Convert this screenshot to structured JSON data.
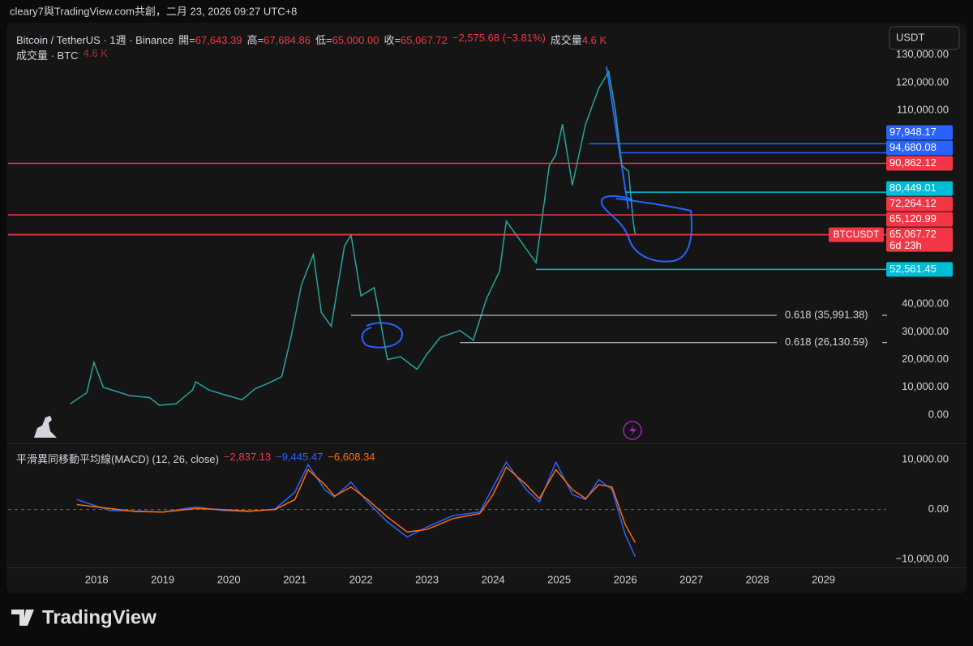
{
  "header_text": "cleary7與TradingView.com共創，二月 23, 2026 09:27 UTC+8",
  "legend": {
    "symbol": "Bitcoin / TetherUS · 1週 · Binance",
    "ohlc": [
      {
        "label": "開=",
        "value": "67,643.39"
      },
      {
        "label": "高=",
        "value": "67,684.86"
      },
      {
        "label": "低=",
        "value": "65,000.00"
      },
      {
        "label": "收=",
        "value": "65,067.72"
      }
    ],
    "change": "−2,575.68 (−3.81%)",
    "volume_label": "成交量",
    "volume": "4.6 K",
    "volume_pane": "成交量 · BTC",
    "volume_pane_value": "4.6 K"
  },
  "footer": {
    "logo": "TradingView"
  },
  "chart_data": [
    {
      "type": "line",
      "currency": "USDT",
      "countdown": "6d 23h",
      "x": [
        2017.6,
        2017.85,
        2017.96,
        2018.1,
        2018.3,
        2018.5,
        2018.8,
        2018.95,
        2019.2,
        2019.45,
        2019.5,
        2019.7,
        2019.95,
        2020.2,
        2020.4,
        2020.6,
        2020.8,
        2020.95,
        2021.1,
        2021.28,
        2021.4,
        2021.55,
        2021.75,
        2021.85,
        2022.0,
        2022.2,
        2022.4,
        2022.6,
        2022.85,
        2023.0,
        2023.2,
        2023.5,
        2023.7,
        2023.9,
        2024.1,
        2024.2,
        2024.5,
        2024.65,
        2024.85,
        2024.95,
        2025.05,
        2025.2,
        2025.4,
        2025.6,
        2025.75,
        2025.85,
        2025.95,
        2026.05,
        2026.12,
        2026.15
      ],
      "series": [
        {
          "name": "BTCUSDT",
          "color": "#26a69a",
          "values": [
            4000,
            8000,
            19000,
            10000,
            8500,
            7000,
            6300,
            3500,
            4000,
            9000,
            12000,
            9000,
            7200,
            5500,
            9500,
            11500,
            13800,
            29000,
            47000,
            58000,
            37000,
            32000,
            61000,
            65000,
            43000,
            46000,
            20000,
            21000,
            16500,
            22000,
            28000,
            30500,
            27000,
            42000,
            52000,
            70000,
            60000,
            55000,
            90000,
            94000,
            105000,
            83000,
            105000,
            118000,
            124000,
            110000,
            90000,
            88000,
            70000,
            65067.72
          ]
        }
      ],
      "xlim": [
        2016.66,
        2029.95
      ],
      "xticks": [
        2018,
        2019,
        2020,
        2021,
        2022,
        2023,
        2024,
        2025,
        2026,
        2027,
        2028,
        2029
      ],
      "ylim": [
        -10250,
        139600
      ],
      "yticks": [
        {
          "value": 0,
          "label": "0.00"
        },
        {
          "value": 10000,
          "label": "10,000.00"
        },
        {
          "value": 20000,
          "label": "20,000.00"
        },
        {
          "value": 30000,
          "label": "30,000.00"
        },
        {
          "value": 40000,
          "label": "40,000.00"
        },
        {
          "value": 110000,
          "label": "110,000.00"
        },
        {
          "value": 120000,
          "label": "120,000.00"
        },
        {
          "value": 130000,
          "label": "130,000.00"
        }
      ],
      "levels": [
        {
          "value": 97948.17,
          "label": "97,948.17",
          "color": "#2962ff",
          "from": 2025.45
        },
        {
          "value": 94680.08,
          "label": "94,680.08",
          "color": "#2962ff",
          "from": 2025.9
        },
        {
          "value": 90862.12,
          "label": "90,862.12",
          "color": "#f23645",
          "from": 2016.66
        },
        {
          "value": 80449.01,
          "label": "80,449.01",
          "color": "#00bcd4",
          "from": 2026.0
        },
        {
          "value": 72264.12,
          "label": "72,264.12",
          "color": "#f23645",
          "from": 2016.66
        },
        {
          "value": 65120.99,
          "label": "65,120.99",
          "color": "#f23645",
          "from": 2016.66
        },
        {
          "value": 65067.72,
          "label": "65,067.72",
          "color": "#f23645",
          "from": 2016.66
        },
        {
          "value": 52561.45,
          "label": "52,561.45",
          "color": "#00bcd4",
          "from": 2024.65
        }
      ],
      "fibs": [
        {
          "value": 35991.38,
          "label": "0.618 (35,991.38)",
          "from": 2021.85
        },
        {
          "value": 26130.59,
          "label": "0.618 (26,130.59)",
          "from": 2023.5
        }
      ]
    },
    {
      "type": "line",
      "title": "平滑異同移動平均線(MACD) (12, 26, close)",
      "legend_values": [
        {
          "label": "−2,837.13",
          "color": "#f23645"
        },
        {
          "label": "−9,445.47",
          "color": "#2962ff"
        },
        {
          "label": "−6,608.34",
          "color": "#ff6d00"
        }
      ],
      "x": [
        2017.7,
        2018.2,
        2018.6,
        2019.0,
        2019.5,
        2019.9,
        2020.3,
        2020.7,
        2021.0,
        2021.2,
        2021.45,
        2021.6,
        2021.85,
        2022.1,
        2022.4,
        2022.7,
        2023.0,
        2023.4,
        2023.8,
        2024.0,
        2024.2,
        2024.5,
        2024.7,
        2024.95,
        2025.2,
        2025.4,
        2025.6,
        2025.8,
        2026.0,
        2026.15
      ],
      "series": [
        {
          "color": "#2962ff",
          "values": [
            2000,
            -200,
            -300,
            -500,
            500,
            -200,
            -400,
            100,
            3500,
            9000,
            4000,
            2500,
            5500,
            1500,
            -2500,
            -5500,
            -3500,
            -1200,
            -500,
            4500,
            9500,
            4000,
            1500,
            9500,
            3000,
            2000,
            6000,
            4000,
            -5000,
            -9445.47
          ]
        },
        {
          "color": "#ff6d00",
          "values": [
            1000,
            200,
            -400,
            -500,
            200,
            0,
            -300,
            0,
            2000,
            8000,
            5000,
            2700,
            4500,
            2000,
            -1500,
            -4500,
            -4000,
            -1800,
            -800,
            3000,
            8500,
            5000,
            2200,
            8000,
            4000,
            2200,
            5000,
            4500,
            -3000,
            -6608.34
          ]
        }
      ],
      "ylim": [
        -11600,
        13100
      ],
      "yticks": [
        {
          "value": 10000,
          "label": "10,000.00"
        },
        {
          "value": 0,
          "label": "0.00"
        },
        {
          "value": -10000,
          "label": "−10,000.00"
        }
      ]
    }
  ]
}
